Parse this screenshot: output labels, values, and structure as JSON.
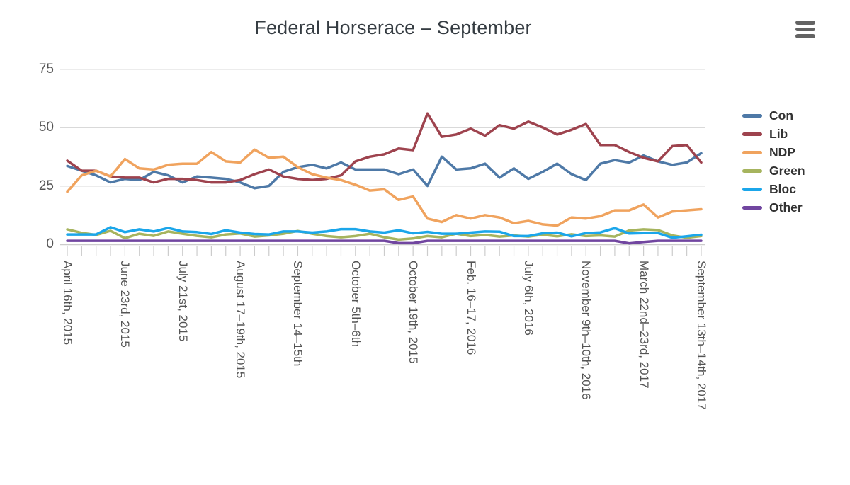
{
  "title": "Federal Horserace – September",
  "icons": {
    "menu": "hamburger-menu-icon"
  },
  "chart_data": {
    "type": "line",
    "title": "Federal Horserace – September",
    "num_points": 45,
    "ylim": [
      0,
      75
    ],
    "y_ticks": [
      0,
      25,
      50,
      75
    ],
    "grid": "horizontal",
    "legend_position": "right",
    "grid_color": "#d9d9d9",
    "axis_color": "#cccccc",
    "text_color": "#545454",
    "title_color": "#353c42",
    "background": "#ffffff",
    "x_ticks": [
      {
        "i": 0,
        "label": "April 16th, 2015"
      },
      {
        "i": 4,
        "label": "June 23rd, 2015"
      },
      {
        "i": 8,
        "label": "July 21st, 2015"
      },
      {
        "i": 12,
        "label": "August 17–19th, 2015"
      },
      {
        "i": 16,
        "label": "September 14–15th"
      },
      {
        "i": 20,
        "label": "October 5th–6th"
      },
      {
        "i": 24,
        "label": "October 19th, 2015"
      },
      {
        "i": 28,
        "label": "Feb. 16–17, 2016"
      },
      {
        "i": 32,
        "label": "July 6th, 2016"
      },
      {
        "i": 36,
        "label": "November 9th–10th, 2016"
      },
      {
        "i": 40,
        "label": "March 22nd–23rd, 2017"
      },
      {
        "i": 44,
        "label": "September 13th–14th, 2017"
      }
    ],
    "series": [
      {
        "name": "Con",
        "color": "#4e79a7",
        "values": [
          33.5,
          31.5,
          29.5,
          26.5,
          28,
          27.5,
          31,
          29.5,
          26.5,
          29,
          28.5,
          28,
          26.5,
          24,
          25,
          31,
          33,
          34,
          32.5,
          35,
          32,
          32,
          32,
          30,
          32,
          25,
          37.5,
          32,
          32.5,
          34.5,
          28.5,
          32.5,
          28,
          31,
          34.5,
          30,
          27.5,
          34.5,
          36,
          35,
          38,
          35.5,
          34,
          35,
          39
        ]
      },
      {
        "name": "Lib",
        "color": "#9e434e",
        "values": [
          35.8,
          31.5,
          31.5,
          29,
          28.5,
          28.5,
          26.5,
          28,
          28,
          27.5,
          26.5,
          26.5,
          27.5,
          30,
          32,
          29,
          28,
          27.5,
          28,
          29.5,
          35.5,
          37.5,
          38.5,
          41,
          40.3,
          56,
          46,
          47,
          49.5,
          46.5,
          51,
          49.5,
          52.5,
          50,
          47,
          49,
          51.5,
          42.5,
          42.5,
          39.5,
          37,
          35.5,
          42,
          42.5,
          35
        ]
      },
      {
        "name": "NDP",
        "color": "#f0a35e",
        "values": [
          22.5,
          29.5,
          31.5,
          29,
          36.5,
          32.5,
          32,
          34,
          34.5,
          34.5,
          39.5,
          35.5,
          35,
          40.5,
          37,
          37.5,
          33,
          30,
          28.5,
          27.5,
          25.5,
          23,
          23.5,
          19,
          20.5,
          11,
          9.5,
          12.5,
          11,
          12.5,
          11.5,
          9,
          10,
          8.5,
          8,
          11.5,
          11,
          12,
          14.5,
          14.5,
          17,
          11.5,
          14,
          14.5,
          15
        ]
      },
      {
        "name": "Green",
        "color": "#a6b45e",
        "values": [
          6.4,
          4.9,
          4,
          5.8,
          2.6,
          4.5,
          3.6,
          5.5,
          4.5,
          3.6,
          3,
          4.2,
          4.6,
          3.3,
          3.8,
          4.5,
          5.7,
          4.5,
          3.5,
          3,
          3.5,
          4.5,
          3,
          2,
          2.5,
          3.5,
          3,
          4.5,
          3.5,
          4,
          3.3,
          3.8,
          3.3,
          4.1,
          3.4,
          4.3,
          3.5,
          3.8,
          3.3,
          5.9,
          6.4,
          6.1,
          3.8,
          2.8,
          3.5
        ]
      },
      {
        "name": "Bloc",
        "color": "#1ba6ea",
        "values": [
          4.2,
          4.2,
          4.2,
          7.3,
          5.2,
          6.4,
          5.5,
          7,
          5.5,
          5.2,
          4.4,
          6,
          5,
          4.4,
          4.2,
          5.5,
          5.5,
          5,
          5.5,
          6.5,
          6.5,
          5.5,
          5,
          6,
          4.7,
          5.3,
          4.5,
          4.5,
          5,
          5.5,
          5.4,
          3.5,
          3.5,
          4.7,
          5,
          3.4,
          4.8,
          5.1,
          6.9,
          4.6,
          4.8,
          4.8,
          2.8,
          3.4,
          4.1
        ]
      },
      {
        "name": "Other",
        "color": "#7146a0",
        "values": [
          1.5,
          1.5,
          1.5,
          1.5,
          1.5,
          1.5,
          1.5,
          1.5,
          1.5,
          1.5,
          1.5,
          1.5,
          1.5,
          1.5,
          1.5,
          1.5,
          1.5,
          1.5,
          1.5,
          1.5,
          1.5,
          1.5,
          1.5,
          0.5,
          0.5,
          1.5,
          1.5,
          1.5,
          1.5,
          1.5,
          1.5,
          1.5,
          1.5,
          1.5,
          1.5,
          1.5,
          1.5,
          1.5,
          1.5,
          0.4,
          1,
          1.5,
          1.5,
          1.5,
          1.5
        ]
      }
    ]
  }
}
